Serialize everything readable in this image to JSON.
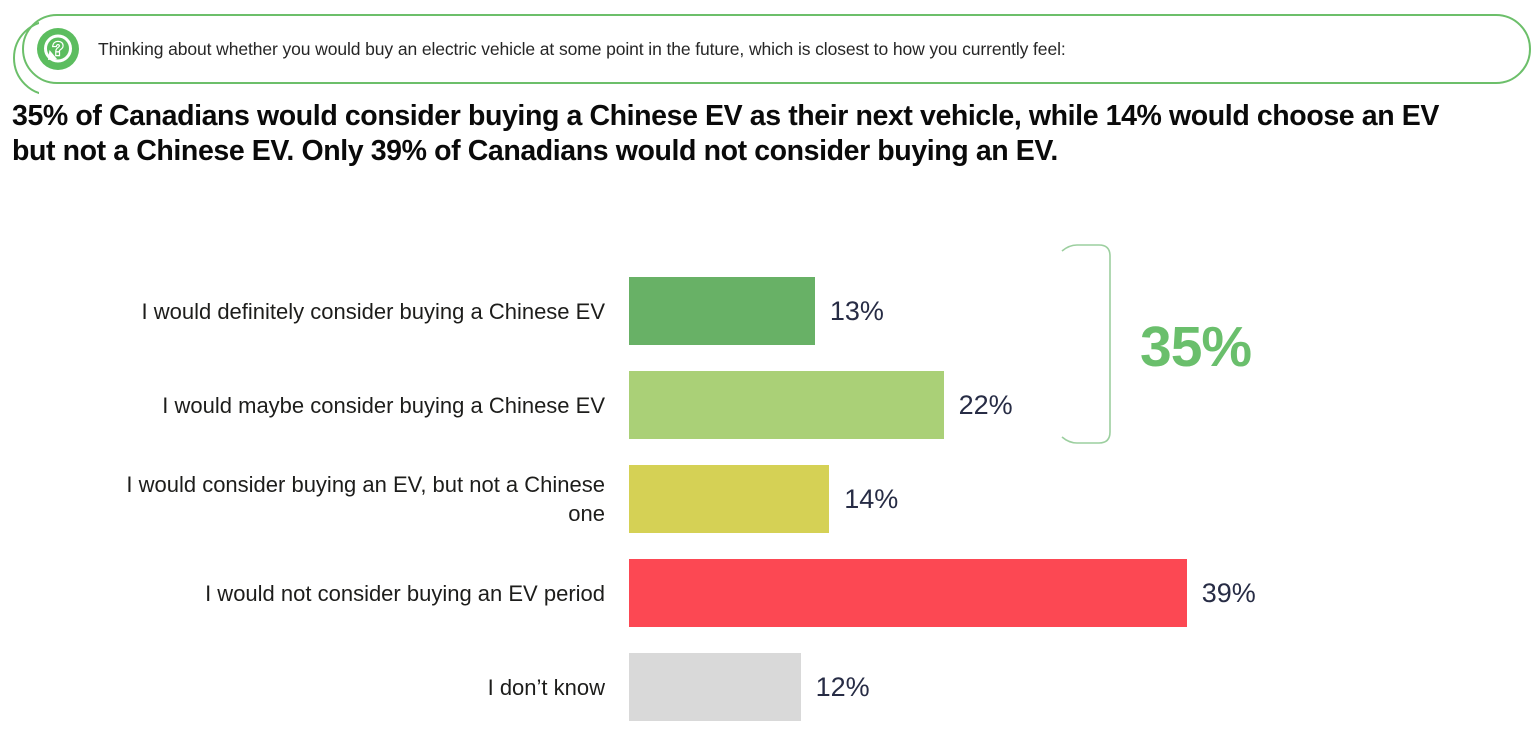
{
  "banner": {
    "question": "Thinking about whether you would buy an electric vehicle at some point in the future, which is closest to how you currently feel:",
    "icon": "question-mark-speech-bubble",
    "border_color": "#6cbf6a",
    "icon_color": "#5cbd5f"
  },
  "headline": "35% of Canadians would consider buying a Chinese EV as their next vehicle, while 14% would choose an EV but not a Chinese EV. Only 39% of Canadians would not consider buying an EV.",
  "chart_data": {
    "type": "bar",
    "orientation": "horizontal",
    "title": "",
    "xlabel": "",
    "ylabel": "",
    "axes_visible": false,
    "grid": false,
    "xlim": [
      0,
      100
    ],
    "categories": [
      "I would definitely consider buying a Chinese EV",
      "I would maybe consider buying a Chinese EV",
      "I would consider buying an EV, but not a Chinese one",
      "I would not consider buying an EV period",
      "I don’t know"
    ],
    "values": [
      13,
      22,
      14,
      39,
      12
    ],
    "value_labels": [
      "13%",
      "22%",
      "14%",
      "39%",
      "12%"
    ],
    "bar_colors": [
      "#68b166",
      "#aad077",
      "#d5d155",
      "#fc4853",
      "#d9d9d9"
    ],
    "annotation": {
      "label": "35%",
      "color": "#6abf6c",
      "bracket_color": "#9ccf9f",
      "applies_to": [
        "I would definitely consider buying a Chinese EV",
        "I would maybe consider buying a Chinese EV"
      ]
    }
  }
}
